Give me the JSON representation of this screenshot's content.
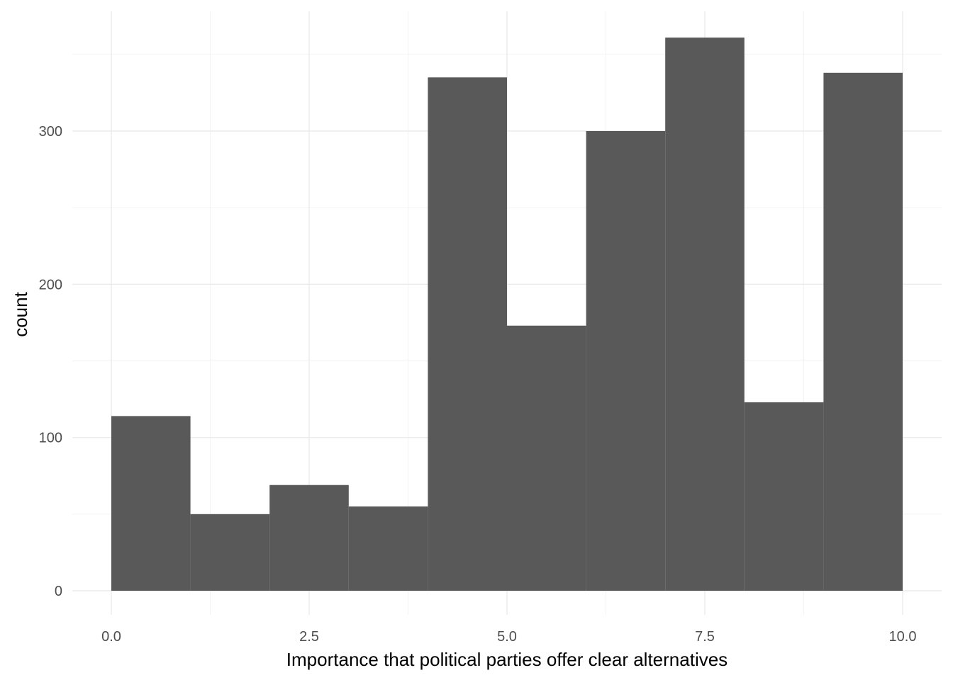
{
  "chart_data": {
    "type": "bar",
    "title": "",
    "xlabel": "Importance that political parties offer clear alternatives",
    "ylabel": "count",
    "bins": [
      {
        "x0": 0,
        "x1": 1,
        "count": 114
      },
      {
        "x0": 1,
        "x1": 2,
        "count": 50
      },
      {
        "x0": 2,
        "x1": 3,
        "count": 69
      },
      {
        "x0": 3,
        "x1": 4,
        "count": 55
      },
      {
        "x0": 4,
        "x1": 5,
        "count": 335
      },
      {
        "x0": 5,
        "x1": 6,
        "count": 173
      },
      {
        "x0": 6,
        "x1": 7,
        "count": 300
      },
      {
        "x0": 7,
        "x1": 8,
        "count": 361
      },
      {
        "x0": 8,
        "x1": 9,
        "count": 123
      },
      {
        "x0": 9,
        "x1": 10,
        "count": 338
      }
    ],
    "xlim": [
      -0.5,
      10.5
    ],
    "ylim": [
      0,
      361
    ],
    "x_ticks": [
      0,
      2.5,
      5,
      7.5,
      10
    ],
    "x_tick_labels": [
      "0.0",
      "2.5",
      "5.0",
      "7.5",
      "10.0"
    ],
    "y_ticks": [
      0,
      100,
      200,
      300
    ],
    "y_tick_labels": [
      "0",
      "100",
      "200",
      "300"
    ],
    "grid": true,
    "legend": "none",
    "colors": {
      "bar": "#595959",
      "grid_major": "#ebebeb",
      "grid_minor": "#f2f2f2",
      "tick_text": "#4d4d4d",
      "axis_title": "#000000",
      "background": "#ffffff"
    }
  }
}
